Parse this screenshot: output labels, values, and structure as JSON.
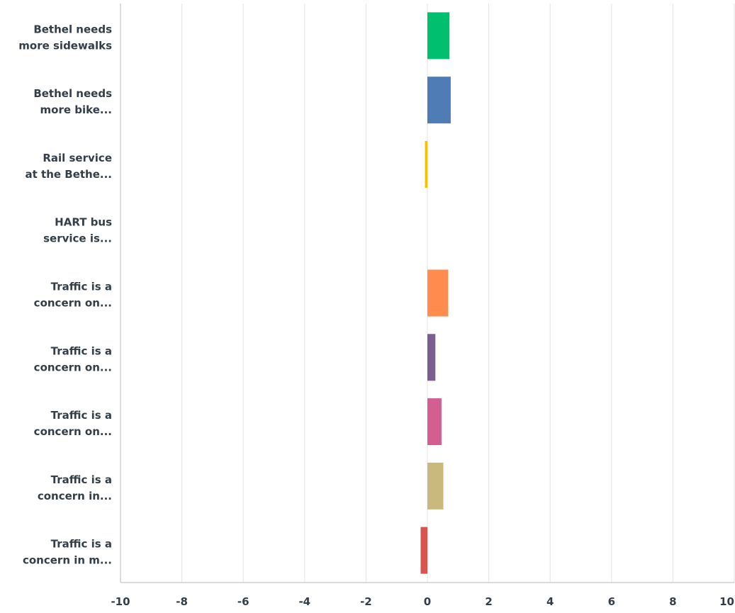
{
  "chart_data": {
    "type": "bar",
    "orientation": "horizontal",
    "categories": [
      [
        "Bethel needs",
        "more sidewalks"
      ],
      [
        "Bethel needs",
        "more bike..."
      ],
      [
        "Rail service",
        "at the Bethe..."
      ],
      [
        "HART bus",
        "service is..."
      ],
      [
        "Traffic is a",
        "concern on..."
      ],
      [
        "Traffic is a",
        "concern on..."
      ],
      [
        "Traffic is a",
        "concern on..."
      ],
      [
        "Traffic is a",
        "concern in..."
      ],
      [
        "Traffic is a",
        "concern in m..."
      ]
    ],
    "values": [
      0.72,
      0.76,
      -0.08,
      0.0,
      0.68,
      0.26,
      0.46,
      0.52,
      -0.22
    ],
    "colors": [
      "#00bf6f",
      "#507cb6",
      "#f9be00",
      "#6bc8cd",
      "#ff8b4f",
      "#7d5e90",
      "#d25f90",
      "#c9b97c",
      "#d9534f"
    ],
    "xlim": [
      -10,
      10
    ],
    "xticks": [
      "-10",
      "-8",
      "-6",
      "-4",
      "-2",
      "0",
      "2",
      "4",
      "6",
      "8",
      "10"
    ],
    "grid": true,
    "title": "",
    "xlabel": "",
    "ylabel": ""
  }
}
